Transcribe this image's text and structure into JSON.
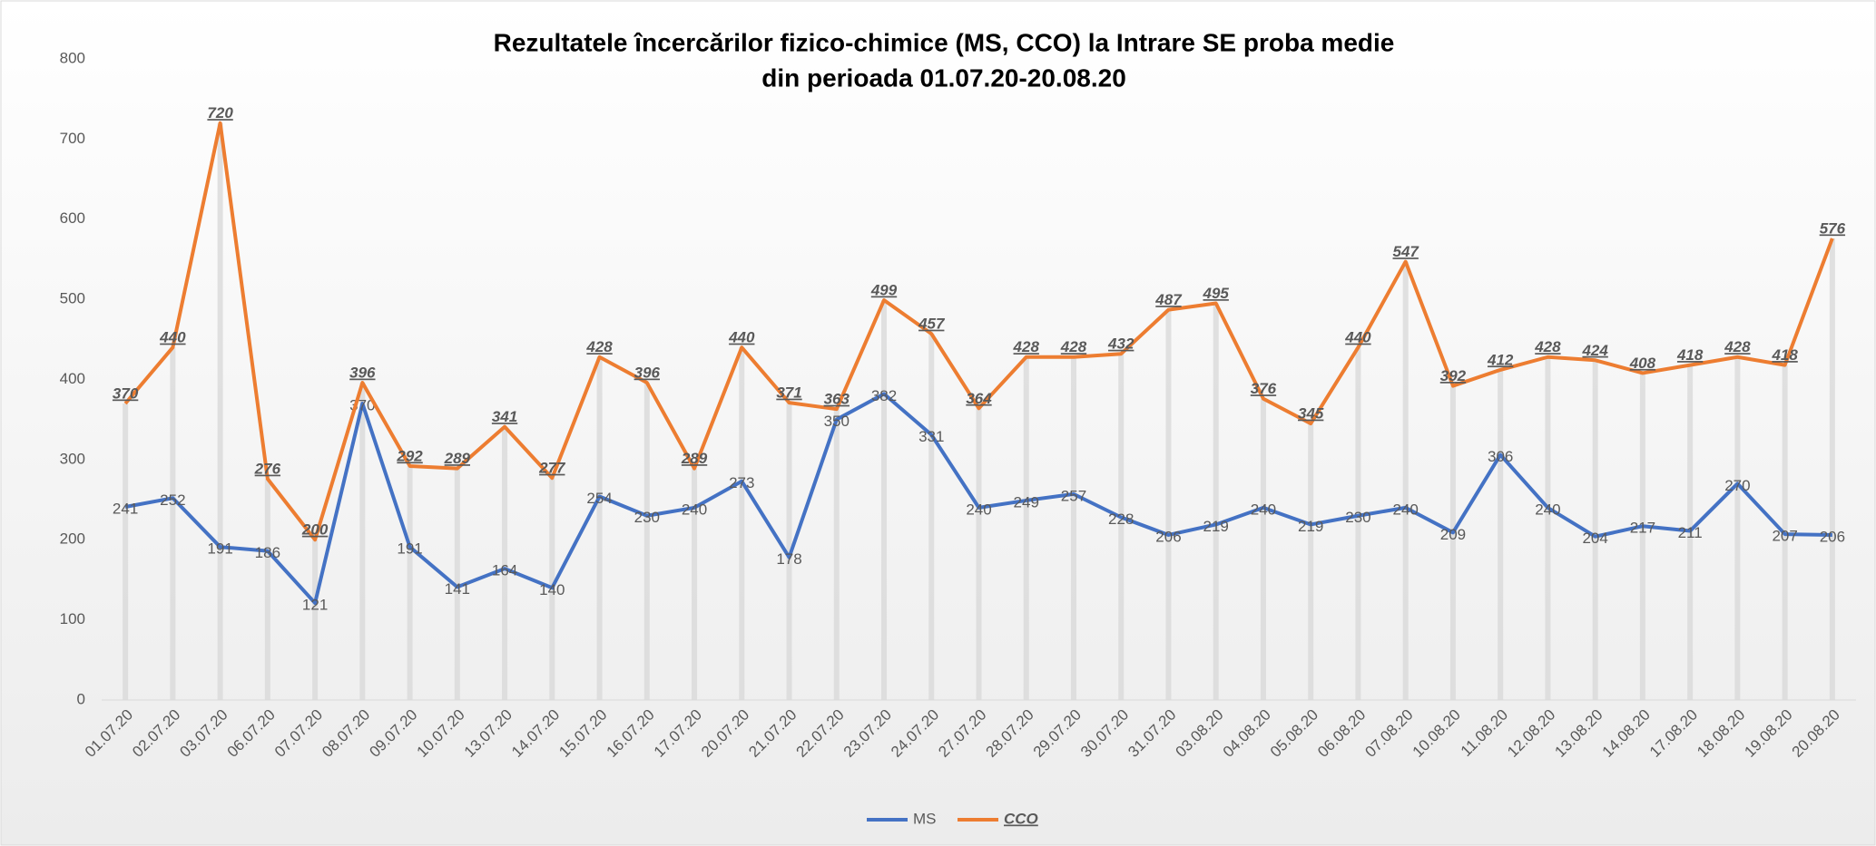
{
  "chart_data": {
    "type": "line",
    "title": [
      "Rezultatele încercărilor fizico-chimice (MS, CCO) la Intrare SE proba medie",
      "din perioada 01.07.20-20.08.20"
    ],
    "categories": [
      "01.07.20",
      "02.07.20",
      "03.07.20",
      "06.07.20",
      "07.07.20",
      "08.07.20",
      "09.07.20",
      "10.07.20",
      "13.07.20",
      "14.07.20",
      "15.07.20",
      "16.07.20",
      "17.07.20",
      "20.07.20",
      "21.07.20",
      "22.07.20",
      "23.07.20",
      "24.07.20",
      "27.07.20",
      "28.07.20",
      "29.07.20",
      "30.07.20",
      "31.07.20",
      "03.08.20",
      "04.08.20",
      "05.08.20",
      "06.08.20",
      "07.08.20",
      "10.08.20",
      "11.08.20",
      "12.08.20",
      "13.08.20",
      "14.08.20",
      "17.08.20",
      "18.08.20",
      "19.08.20",
      "20.08.20"
    ],
    "series": [
      {
        "name": "MS",
        "color": "#4472c4",
        "values": [
          241,
          252,
          191,
          186,
          121,
          370,
          191,
          141,
          164,
          140,
          254,
          230,
          240,
          273,
          178,
          350,
          382,
          331,
          240,
          249,
          257,
          228,
          206,
          219,
          240,
          219,
          230,
          240,
          209,
          306,
          240,
          204,
          217,
          211,
          270,
          207,
          206
        ]
      },
      {
        "name": "CCO",
        "color": "#ed7d31",
        "values": [
          370,
          440,
          720,
          276,
          200,
          396,
          292,
          289,
          341,
          277,
          428,
          396,
          289,
          440,
          371,
          363,
          499,
          457,
          364,
          428,
          428,
          432,
          487,
          495,
          376,
          345,
          440,
          547,
          392,
          412,
          428,
          424,
          408,
          418,
          428,
          418,
          576
        ]
      }
    ],
    "ylim": [
      0,
      800
    ],
    "yticks": [
      0,
      100,
      200,
      300,
      400,
      500,
      600,
      700,
      800
    ],
    "grid": false,
    "legend": "bottom"
  }
}
